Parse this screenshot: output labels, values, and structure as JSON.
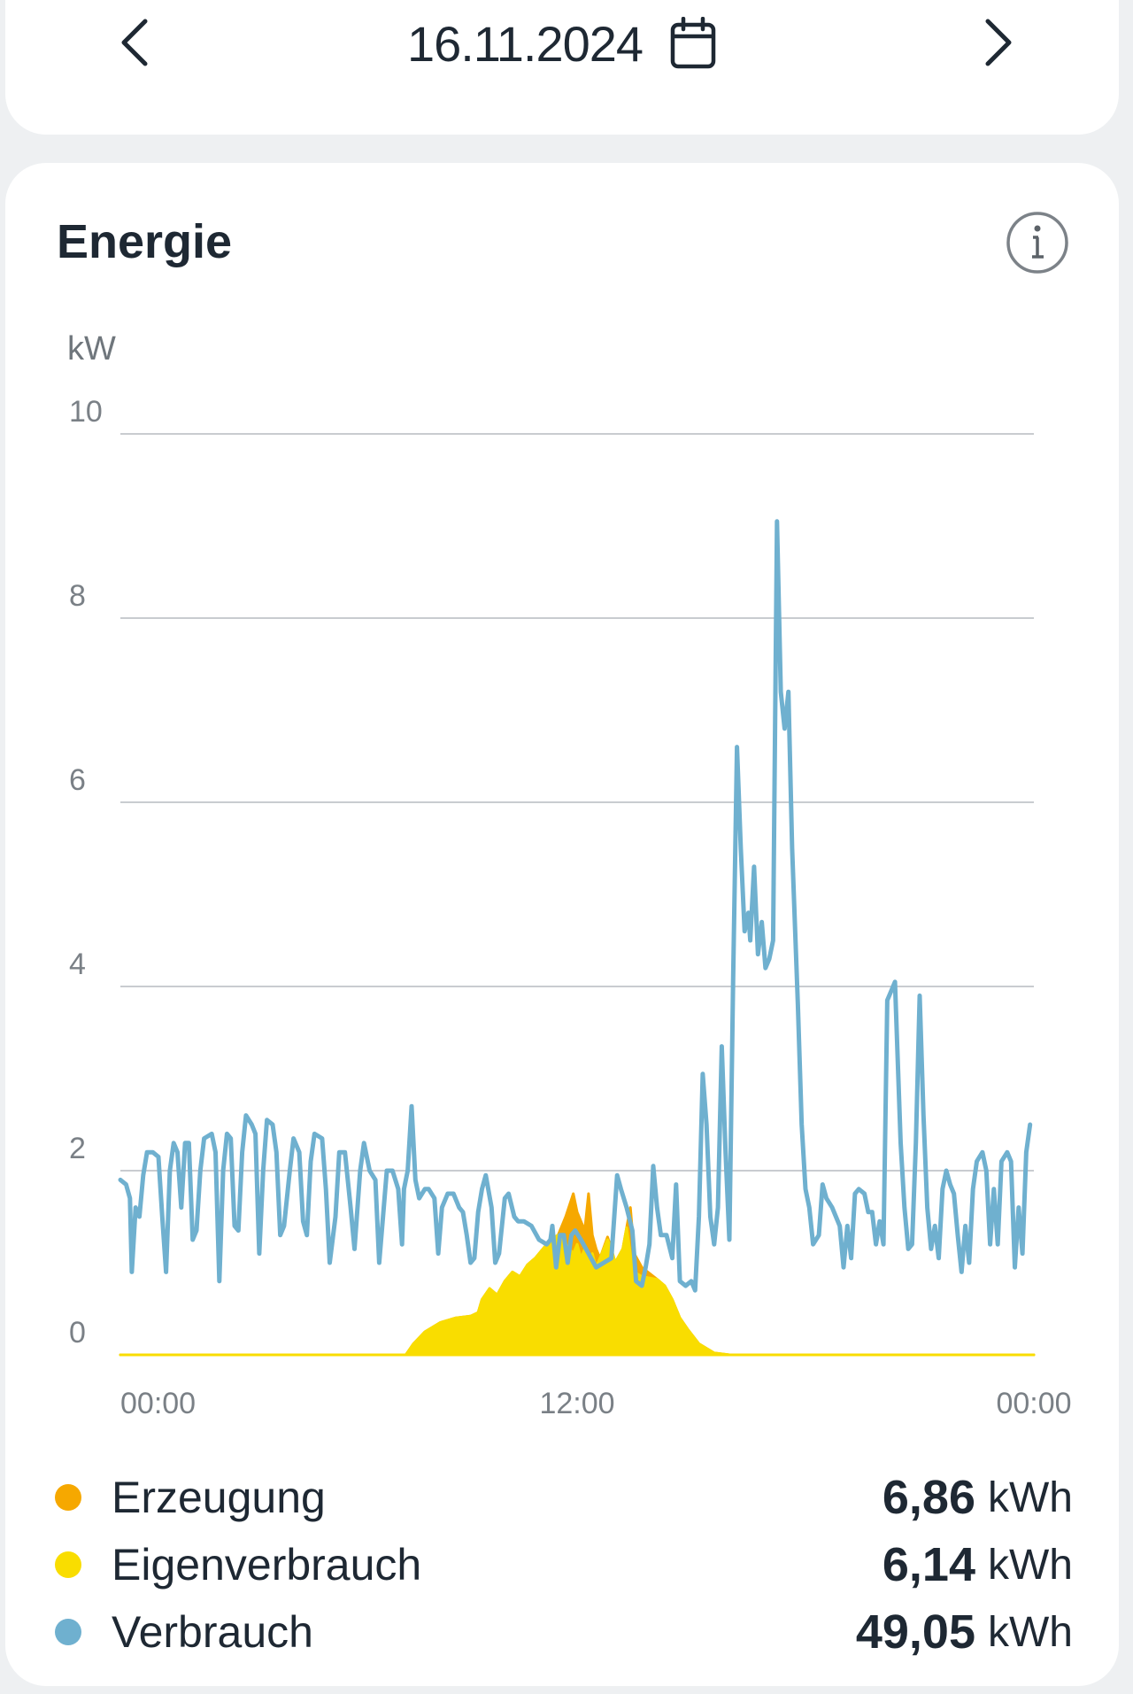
{
  "header": {
    "date": "16.11.2024",
    "prev_icon": "chevron-left-icon",
    "next_icon": "chevron-right-icon",
    "calendar_icon": "calendar-icon"
  },
  "card": {
    "title": "Energie",
    "info_icon": "info-icon"
  },
  "chart_data": {
    "type": "area",
    "ylabel": "kW",
    "ylim": [
      0,
      10
    ],
    "yticks": [
      "0",
      "2",
      "4",
      "6",
      "8",
      "10"
    ],
    "xlim": [
      0,
      24
    ],
    "xticks": [
      {
        "value": 0,
        "label": "00:00"
      },
      {
        "value": 12,
        "label": "12:00"
      },
      {
        "value": 24,
        "label": "00:00"
      }
    ],
    "grid": true,
    "series": [
      {
        "name": "Erzeugung",
        "color": "#f6a800",
        "kind": "area",
        "points": [
          [
            0,
            0
          ],
          [
            7.5,
            0
          ],
          [
            7.7,
            0.12
          ],
          [
            8,
            0.25
          ],
          [
            8.4,
            0.35
          ],
          [
            8.8,
            0.4
          ],
          [
            9.2,
            0.42
          ],
          [
            9.4,
            0.46
          ],
          [
            9.5,
            0.6
          ],
          [
            9.7,
            0.72
          ],
          [
            9.9,
            0.65
          ],
          [
            10.1,
            0.8
          ],
          [
            10.3,
            0.9
          ],
          [
            10.5,
            0.85
          ],
          [
            10.7,
            0.98
          ],
          [
            10.9,
            1.05
          ],
          [
            11.1,
            1.15
          ],
          [
            11.3,
            1.25
          ],
          [
            11.5,
            1.3
          ],
          [
            11.7,
            1.5
          ],
          [
            11.9,
            1.75
          ],
          [
            12.0,
            1.55
          ],
          [
            12.1,
            1.45
          ],
          [
            12.2,
            1.35
          ],
          [
            12.3,
            1.75
          ],
          [
            12.4,
            1.3
          ],
          [
            12.5,
            1.15
          ],
          [
            12.6,
            1.05
          ],
          [
            12.8,
            1.28
          ],
          [
            12.9,
            1.15
          ],
          [
            13.0,
            1.0
          ],
          [
            13.2,
            1.15
          ],
          [
            13.3,
            1.38
          ],
          [
            13.4,
            1.6
          ],
          [
            13.5,
            1.1
          ],
          [
            13.7,
            0.95
          ],
          [
            14.1,
            0.82
          ],
          [
            14.3,
            0.75
          ],
          [
            14.5,
            0.6
          ],
          [
            14.7,
            0.4
          ],
          [
            14.9,
            0.28
          ],
          [
            15.2,
            0.12
          ],
          [
            15.6,
            0.02
          ],
          [
            16,
            0
          ],
          [
            24,
            0
          ]
        ]
      },
      {
        "name": "Eigenverbrauch",
        "color": "#f9dd00",
        "kind": "area",
        "points": [
          [
            0,
            0
          ],
          [
            7.5,
            0
          ],
          [
            7.7,
            0.12
          ],
          [
            8,
            0.25
          ],
          [
            8.4,
            0.35
          ],
          [
            8.8,
            0.4
          ],
          [
            9.2,
            0.42
          ],
          [
            9.4,
            0.46
          ],
          [
            9.5,
            0.6
          ],
          [
            9.7,
            0.72
          ],
          [
            9.9,
            0.65
          ],
          [
            10.1,
            0.8
          ],
          [
            10.3,
            0.9
          ],
          [
            10.5,
            0.85
          ],
          [
            10.7,
            0.98
          ],
          [
            10.9,
            1.05
          ],
          [
            11.1,
            1.15
          ],
          [
            11.3,
            1.25
          ],
          [
            11.5,
            1.3
          ],
          [
            11.7,
            1.2
          ],
          [
            11.9,
            1.1
          ],
          [
            12.0,
            1.2
          ],
          [
            12.1,
            1.05
          ],
          [
            12.2,
            1.15
          ],
          [
            12.3,
            1.0
          ],
          [
            12.4,
            1.1
          ],
          [
            12.5,
            0.95
          ],
          [
            12.6,
            1.05
          ],
          [
            12.8,
            1.25
          ],
          [
            12.9,
            1.15
          ],
          [
            13.0,
            1.0
          ],
          [
            13.2,
            1.15
          ],
          [
            13.3,
            1.38
          ],
          [
            13.4,
            1.1
          ],
          [
            13.5,
            0.9
          ],
          [
            13.7,
            0.85
          ],
          [
            14.1,
            0.82
          ],
          [
            14.3,
            0.75
          ],
          [
            14.5,
            0.6
          ],
          [
            14.7,
            0.4
          ],
          [
            14.9,
            0.28
          ],
          [
            15.2,
            0.12
          ],
          [
            15.6,
            0.02
          ],
          [
            16,
            0
          ],
          [
            24,
            0
          ]
        ]
      },
      {
        "name": "Verbrauch",
        "color": "#6fb0cf",
        "kind": "line",
        "points": [
          [
            0,
            1.9
          ],
          [
            0.15,
            1.85
          ],
          [
            0.25,
            1.7
          ],
          [
            0.3,
            0.9
          ],
          [
            0.4,
            1.6
          ],
          [
            0.5,
            1.5
          ],
          [
            0.6,
            1.95
          ],
          [
            0.7,
            2.2
          ],
          [
            0.85,
            2.2
          ],
          [
            1.0,
            2.15
          ],
          [
            1.1,
            1.5
          ],
          [
            1.2,
            0.9
          ],
          [
            1.3,
            2.0
          ],
          [
            1.4,
            2.3
          ],
          [
            1.5,
            2.2
          ],
          [
            1.6,
            1.6
          ],
          [
            1.7,
            2.3
          ],
          [
            1.8,
            2.3
          ],
          [
            1.9,
            1.25
          ],
          [
            2.0,
            1.35
          ],
          [
            2.1,
            2.0
          ],
          [
            2.2,
            2.35
          ],
          [
            2.4,
            2.4
          ],
          [
            2.5,
            2.2
          ],
          [
            2.6,
            0.8
          ],
          [
            2.7,
            2.0
          ],
          [
            2.8,
            2.4
          ],
          [
            2.9,
            2.35
          ],
          [
            3.0,
            1.4
          ],
          [
            3.1,
            1.35
          ],
          [
            3.2,
            2.2
          ],
          [
            3.3,
            2.6
          ],
          [
            3.45,
            2.5
          ],
          [
            3.55,
            2.4
          ],
          [
            3.65,
            1.1
          ],
          [
            3.75,
            2.0
          ],
          [
            3.85,
            2.55
          ],
          [
            4.0,
            2.5
          ],
          [
            4.1,
            2.2
          ],
          [
            4.2,
            1.3
          ],
          [
            4.3,
            1.4
          ],
          [
            4.45,
            2.0
          ],
          [
            4.55,
            2.35
          ],
          [
            4.7,
            2.2
          ],
          [
            4.8,
            1.45
          ],
          [
            4.9,
            1.3
          ],
          [
            5.0,
            2.1
          ],
          [
            5.1,
            2.4
          ],
          [
            5.3,
            2.35
          ],
          [
            5.4,
            1.8
          ],
          [
            5.5,
            1.0
          ],
          [
            5.65,
            1.5
          ],
          [
            5.75,
            2.2
          ],
          [
            5.9,
            2.2
          ],
          [
            6.05,
            1.6
          ],
          [
            6.15,
            1.15
          ],
          [
            6.3,
            2.0
          ],
          [
            6.4,
            2.3
          ],
          [
            6.55,
            2.0
          ],
          [
            6.7,
            1.9
          ],
          [
            6.8,
            1.0
          ],
          [
            6.9,
            1.5
          ],
          [
            7.0,
            2.0
          ],
          [
            7.15,
            2.0
          ],
          [
            7.3,
            1.8
          ],
          [
            7.4,
            1.2
          ],
          [
            7.45,
            1.8
          ],
          [
            7.55,
            2.0
          ],
          [
            7.65,
            2.7
          ],
          [
            7.75,
            1.9
          ],
          [
            7.85,
            1.7
          ],
          [
            8.0,
            1.8
          ],
          [
            8.1,
            1.8
          ],
          [
            8.25,
            1.7
          ],
          [
            8.35,
            1.1
          ],
          [
            8.45,
            1.6
          ],
          [
            8.6,
            1.75
          ],
          [
            8.75,
            1.75
          ],
          [
            8.9,
            1.6
          ],
          [
            9.0,
            1.55
          ],
          [
            9.1,
            1.3
          ],
          [
            9.2,
            1.0
          ],
          [
            9.3,
            1.05
          ],
          [
            9.4,
            1.55
          ],
          [
            9.5,
            1.8
          ],
          [
            9.6,
            1.95
          ],
          [
            9.75,
            1.6
          ],
          [
            9.85,
            1.0
          ],
          [
            9.95,
            1.1
          ],
          [
            10.1,
            1.7
          ],
          [
            10.2,
            1.75
          ],
          [
            10.35,
            1.5
          ],
          [
            10.45,
            1.45
          ],
          [
            10.6,
            1.45
          ],
          [
            10.8,
            1.4
          ],
          [
            11.0,
            1.25
          ],
          [
            11.2,
            1.2
          ],
          [
            11.3,
            1.25
          ],
          [
            11.35,
            1.4
          ],
          [
            11.45,
            0.95
          ],
          [
            11.55,
            1.3
          ],
          [
            11.65,
            1.3
          ],
          [
            11.75,
            1.0
          ],
          [
            11.85,
            1.3
          ],
          [
            11.95,
            1.35
          ],
          [
            12.1,
            1.25
          ],
          [
            12.3,
            1.1
          ],
          [
            12.5,
            0.95
          ],
          [
            12.7,
            1.0
          ],
          [
            12.9,
            1.05
          ],
          [
            13.05,
            1.95
          ],
          [
            13.15,
            1.8
          ],
          [
            13.3,
            1.6
          ],
          [
            13.45,
            1.35
          ],
          [
            13.55,
            0.8
          ],
          [
            13.7,
            0.75
          ],
          [
            13.8,
            0.95
          ],
          [
            13.9,
            1.2
          ],
          [
            14.0,
            2.05
          ],
          [
            14.1,
            1.6
          ],
          [
            14.2,
            1.3
          ],
          [
            14.35,
            1.3
          ],
          [
            14.5,
            1.05
          ],
          [
            14.6,
            1.85
          ],
          [
            14.7,
            0.8
          ],
          [
            14.85,
            0.75
          ],
          [
            15.0,
            0.8
          ],
          [
            15.1,
            0.7
          ],
          [
            15.2,
            1.5
          ],
          [
            15.3,
            3.05
          ],
          [
            15.4,
            2.5
          ],
          [
            15.5,
            1.5
          ],
          [
            15.6,
            1.2
          ],
          [
            15.7,
            1.6
          ],
          [
            15.8,
            3.35
          ],
          [
            15.9,
            2.2
          ],
          [
            16.0,
            1.25
          ],
          [
            16.1,
            4.1
          ],
          [
            16.2,
            6.6
          ],
          [
            16.3,
            5.5
          ],
          [
            16.4,
            4.6
          ],
          [
            16.5,
            4.8
          ],
          [
            16.55,
            4.5
          ],
          [
            16.65,
            5.3
          ],
          [
            16.75,
            4.35
          ],
          [
            16.85,
            4.7
          ],
          [
            16.95,
            4.2
          ],
          [
            17.05,
            4.3
          ],
          [
            17.15,
            4.5
          ],
          [
            17.25,
            9.05
          ],
          [
            17.35,
            7.2
          ],
          [
            17.45,
            6.8
          ],
          [
            17.55,
            7.2
          ],
          [
            17.65,
            5.5
          ],
          [
            17.8,
            3.8
          ],
          [
            17.9,
            2.5
          ],
          [
            18.0,
            1.8
          ],
          [
            18.1,
            1.6
          ],
          [
            18.2,
            1.2
          ],
          [
            18.35,
            1.3
          ],
          [
            18.45,
            1.85
          ],
          [
            18.55,
            1.7
          ],
          [
            18.7,
            1.6
          ],
          [
            18.8,
            1.5
          ],
          [
            18.9,
            1.4
          ],
          [
            19.0,
            0.95
          ],
          [
            19.1,
            1.4
          ],
          [
            19.2,
            1.05
          ],
          [
            19.3,
            1.75
          ],
          [
            19.4,
            1.8
          ],
          [
            19.55,
            1.75
          ],
          [
            19.65,
            1.55
          ],
          [
            19.75,
            1.55
          ],
          [
            19.85,
            1.2
          ],
          [
            19.95,
            1.45
          ],
          [
            20.05,
            1.2
          ],
          [
            20.15,
            3.85
          ],
          [
            20.25,
            3.95
          ],
          [
            20.35,
            4.05
          ],
          [
            20.5,
            2.3
          ],
          [
            20.6,
            1.6
          ],
          [
            20.7,
            1.15
          ],
          [
            20.8,
            1.2
          ],
          [
            20.9,
            2.3
          ],
          [
            21.0,
            3.9
          ],
          [
            21.1,
            2.6
          ],
          [
            21.2,
            1.6
          ],
          [
            21.3,
            1.15
          ],
          [
            21.4,
            1.4
          ],
          [
            21.5,
            1.05
          ],
          [
            21.6,
            1.8
          ],
          [
            21.7,
            2.0
          ],
          [
            21.8,
            1.85
          ],
          [
            21.9,
            1.75
          ],
          [
            22.0,
            1.3
          ],
          [
            22.1,
            0.9
          ],
          [
            22.2,
            1.4
          ],
          [
            22.3,
            1.0
          ],
          [
            22.4,
            1.8
          ],
          [
            22.5,
            2.1
          ],
          [
            22.65,
            2.2
          ],
          [
            22.75,
            2.0
          ],
          [
            22.85,
            1.2
          ],
          [
            22.95,
            1.8
          ],
          [
            23.05,
            1.2
          ],
          [
            23.15,
            2.1
          ],
          [
            23.3,
            2.2
          ],
          [
            23.4,
            2.1
          ],
          [
            23.5,
            0.95
          ],
          [
            23.6,
            1.6
          ],
          [
            23.7,
            1.1
          ],
          [
            23.8,
            2.2
          ],
          [
            23.9,
            2.5
          ]
        ]
      }
    ]
  },
  "legend": [
    {
      "name": "Erzeugung",
      "color": "#f6a800",
      "value": "6,86",
      "unit": "kWh"
    },
    {
      "name": "Eigenverbrauch",
      "color": "#f9dd00",
      "value": "6,14",
      "unit": "kWh"
    },
    {
      "name": "Verbrauch",
      "color": "#6fb0cf",
      "value": "49,05",
      "unit": "kWh"
    }
  ]
}
